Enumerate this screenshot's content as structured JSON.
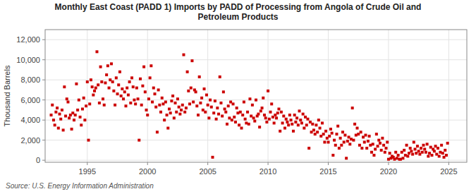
{
  "chart_data": {
    "type": "scatter",
    "title": "Monthly East Coast (PADD 1) Imports by PADD of Processing from Angola of Crude Oil and\nPetroleum Products",
    "ylabel": "Thousand Barrels",
    "source": "Source: U.S. Energy Information Administration",
    "color": "#cc0000",
    "marker": "square",
    "grid": true,
    "xlim": [
      1991.5,
      2026.5
    ],
    "ylim": [
      -200,
      13000
    ],
    "xticks": [
      1995,
      2000,
      2005,
      2010,
      2015,
      2020,
      2025
    ],
    "yticks": [
      0,
      {
        "value": 2000,
        "label": "2,000"
      },
      {
        "value": 4000,
        "label": "4,000"
      },
      {
        "value": 6000,
        "label": "6,000"
      },
      {
        "value": 8000,
        "label": "8,000"
      },
      {
        "value": 10000,
        "label": "10,000"
      },
      {
        "value": 12000,
        "label": "12,000"
      }
    ],
    "x": [
      1992.0,
      1992.1,
      1992.2,
      1992.3,
      1992.4,
      1992.5,
      1992.6,
      1992.7,
      1992.8,
      1992.9,
      1993.0,
      1993.1,
      1993.2,
      1993.3,
      1993.4,
      1993.5,
      1993.6,
      1993.7,
      1993.8,
      1993.9,
      1994.0,
      1994.1,
      1994.2,
      1994.3,
      1994.4,
      1994.5,
      1994.6,
      1994.7,
      1994.8,
      1994.9,
      1995.0,
      1995.1,
      1995.2,
      1995.3,
      1995.4,
      1995.5,
      1995.6,
      1995.7,
      1995.8,
      1995.9,
      1996.0,
      1996.1,
      1996.2,
      1996.3,
      1996.4,
      1996.5,
      1996.6,
      1996.7,
      1996.8,
      1996.9,
      1997.0,
      1997.1,
      1997.2,
      1997.3,
      1997.4,
      1997.5,
      1997.6,
      1997.7,
      1997.8,
      1997.9,
      1998.0,
      1998.1,
      1998.2,
      1998.3,
      1998.4,
      1998.5,
      1998.6,
      1998.7,
      1998.8,
      1998.9,
      1999.0,
      1999.1,
      1999.2,
      1999.3,
      1999.4,
      1999.5,
      1999.6,
      1999.7,
      1999.8,
      1999.9,
      2000.0,
      2000.1,
      2000.2,
      2000.3,
      2000.4,
      2000.5,
      2000.6,
      2000.7,
      2000.8,
      2000.9,
      2001.0,
      2001.1,
      2001.2,
      2001.3,
      2001.4,
      2001.5,
      2001.6,
      2001.7,
      2001.8,
      2001.9,
      2002.0,
      2002.1,
      2002.2,
      2002.3,
      2002.4,
      2002.5,
      2002.6,
      2002.7,
      2002.8,
      2002.9,
      2003.0,
      2003.1,
      2003.2,
      2003.3,
      2003.4,
      2003.5,
      2003.6,
      2003.7,
      2003.8,
      2003.9,
      2004.0,
      2004.1,
      2004.2,
      2004.3,
      2004.4,
      2004.5,
      2004.6,
      2004.7,
      2004.8,
      2004.9,
      2005.0,
      2005.1,
      2005.2,
      2005.3,
      2005.4,
      2005.5,
      2005.6,
      2005.7,
      2005.8,
      2005.9,
      2006.0,
      2006.1,
      2006.2,
      2006.3,
      2006.4,
      2006.5,
      2006.6,
      2006.7,
      2006.8,
      2006.9,
      2007.0,
      2007.1,
      2007.2,
      2007.3,
      2007.4,
      2007.5,
      2007.6,
      2007.7,
      2007.8,
      2007.9,
      2008.0,
      2008.1,
      2008.2,
      2008.3,
      2008.4,
      2008.5,
      2008.6,
      2008.7,
      2008.8,
      2008.9,
      2009.0,
      2009.1,
      2009.2,
      2009.3,
      2009.4,
      2009.5,
      2009.6,
      2009.7,
      2009.8,
      2009.9,
      2010.0,
      2010.1,
      2010.2,
      2010.3,
      2010.4,
      2010.5,
      2010.6,
      2010.7,
      2010.8,
      2010.9,
      2011.0,
      2011.1,
      2011.2,
      2011.3,
      2011.4,
      2011.5,
      2011.6,
      2011.7,
      2011.8,
      2011.9,
      2012.0,
      2012.1,
      2012.2,
      2012.3,
      2012.4,
      2012.5,
      2012.6,
      2012.7,
      2012.8,
      2012.9,
      2013.0,
      2013.1,
      2013.2,
      2013.3,
      2013.4,
      2013.5,
      2013.6,
      2013.7,
      2013.8,
      2013.9,
      2014.0,
      2014.1,
      2014.2,
      2014.3,
      2014.4,
      2014.5,
      2014.6,
      2014.7,
      2014.8,
      2014.9,
      2015.0,
      2015.1,
      2015.2,
      2015.3,
      2015.4,
      2015.5,
      2015.6,
      2015.7,
      2015.8,
      2015.9,
      2016.0,
      2016.1,
      2016.2,
      2016.3,
      2016.4,
      2016.5,
      2016.6,
      2016.7,
      2016.8,
      2016.9,
      2017.0,
      2017.1,
      2017.2,
      2017.3,
      2017.4,
      2017.5,
      2017.6,
      2017.7,
      2017.8,
      2017.9,
      2018.0,
      2018.1,
      2018.2,
      2018.3,
      2018.4,
      2018.5,
      2018.6,
      2018.7,
      2018.8,
      2018.9,
      2019.0,
      2019.1,
      2019.2,
      2019.3,
      2019.4,
      2019.5,
      2019.6,
      2019.7,
      2019.8,
      2019.9,
      2020.0,
      2020.1,
      2020.2,
      2020.3,
      2020.4,
      2020.5,
      2020.6,
      2020.7,
      2020.8,
      2020.9,
      2021.0,
      2021.1,
      2021.2,
      2021.3,
      2021.4,
      2021.5,
      2021.6,
      2021.7,
      2021.8,
      2021.9,
      2022.0,
      2022.1,
      2022.2,
      2022.3,
      2022.4,
      2022.5,
      2022.6,
      2022.7,
      2022.8,
      2022.9,
      2023.0,
      2023.1,
      2023.2,
      2023.3,
      2023.4,
      2023.5,
      2023.6,
      2023.7,
      2023.8,
      2023.9,
      2024.0,
      2024.1,
      2024.2,
      2024.3,
      2024.4,
      2024.5,
      2024.6,
      2024.7,
      2024.8,
      2024.9
    ],
    "values": [
      4500,
      5500,
      4000,
      3500,
      4800,
      5200,
      3200,
      4600,
      4100,
      5000,
      3000,
      7300,
      4400,
      6100,
      5800,
      4200,
      4500,
      3100,
      4700,
      4000,
      4500,
      7600,
      5000,
      6000,
      4300,
      3500,
      5100,
      6200,
      4000,
      5400,
      7800,
      2000,
      5600,
      8000,
      7300,
      6500,
      6900,
      7200,
      10800,
      7500,
      5700,
      9300,
      7800,
      6100,
      5500,
      7700,
      8500,
      9400,
      7200,
      8000,
      9600,
      7800,
      6900,
      5500,
      8200,
      6600,
      7500,
      8800,
      6400,
      7100,
      6100,
      6800,
      5400,
      7200,
      6500,
      7800,
      5700,
      8200,
      7300,
      6000,
      5600,
      7200,
      6100,
      2000,
      8100,
      5500,
      7400,
      9300,
      6800,
      5000,
      4500,
      6100,
      8200,
      9400,
      5800,
      7200,
      6600,
      5300,
      2800,
      7000,
      5500,
      4800,
      6200,
      5600,
      4000,
      5800,
      4500,
      3200,
      5100,
      4700,
      5900,
      6400,
      4200,
      5700,
      4800,
      6100,
      5300,
      4600,
      5000,
      5500,
      10500,
      4800,
      5200,
      8800,
      6900,
      5600,
      7200,
      9900,
      5800,
      7000,
      6800,
      5400,
      4500,
      8300,
      5700,
      6200,
      5000,
      7100,
      4800,
      6500,
      5500,
      4200,
      6000,
      5300,
      300,
      4700,
      5900,
      4100,
      5200,
      4600,
      8300,
      5700,
      4400,
      6800,
      5100,
      4800,
      3600,
      5400,
      4200,
      5800,
      4000,
      5600,
      4300,
      3800,
      5200,
      4700,
      3500,
      4800,
      3200,
      4500,
      5800,
      4100,
      3700,
      4800,
      3600,
      6100,
      4400,
      5500,
      4200,
      3900,
      6000,
      4400,
      4600,
      3300,
      4900,
      5200,
      6200,
      4500,
      4200,
      3800,
      6900,
      4100,
      4800,
      5600,
      4300,
      3700,
      4500,
      4200,
      4700,
      5100,
      2900,
      4800,
      3700,
      4400,
      3200,
      4100,
      3800,
      3500,
      4500,
      4000,
      3600,
      2900,
      4500,
      3800,
      4200,
      3500,
      4900,
      4000,
      3700,
      4600,
      3200,
      4300,
      3500,
      4100,
      1200,
      3800,
      2800,
      3600,
      3000,
      2600,
      3500,
      2800,
      4000,
      3200,
      2400,
      3700,
      2600,
      1800,
      2900,
      2200,
      1800,
      2400,
      3100,
      2700,
      500,
      2000,
      1500,
      2600,
      3400,
      1200,
      2200,
      1500,
      2800,
      1800,
      2500,
      200,
      1900,
      2300,
      1600,
      2100,
      5200,
      2000,
      3600,
      2500,
      3200,
      2600,
      1500,
      2800,
      1200,
      2300,
      1800,
      2500,
      1200,
      1900,
      2400,
      1500,
      800,
      1600,
      500,
      1100,
      2600,
      1400,
      2000,
      1700,
      1000,
      2200,
      1500,
      800,
      1200,
      1800,
      100,
      700,
      200,
      400,
      300,
      100,
      800,
      200,
      500,
      100,
      100,
      800,
      200,
      1000,
      500,
      1500,
      400,
      700,
      1200,
      900,
      600,
      1800,
      1100,
      700,
      1400,
      900,
      600,
      1200,
      800,
      1500,
      1100,
      800,
      1600,
      400,
      700,
      1300,
      500,
      1100,
      900,
      1400,
      600,
      1200,
      400,
      800,
      1500,
      700,
      300,
      1000,
      500,
      1700
    ]
  }
}
